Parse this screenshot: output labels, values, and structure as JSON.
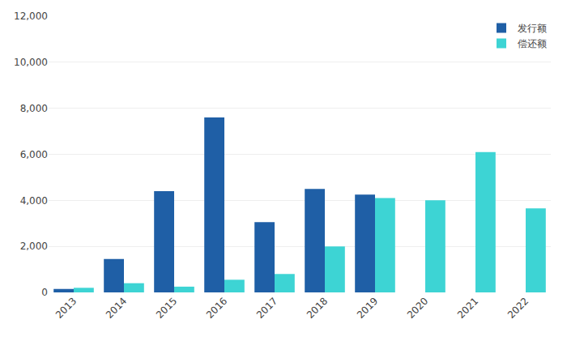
{
  "chart_data": {
    "type": "bar",
    "categories": [
      "2013",
      "2014",
      "2015",
      "2016",
      "2017",
      "2018",
      "2019",
      "2020",
      "2021",
      "2022"
    ],
    "series": [
      {
        "name": "发行额",
        "color": "#1f5fa6",
        "values": [
          150,
          1450,
          4400,
          7600,
          3050,
          4500,
          4250,
          0,
          0,
          0
        ]
      },
      {
        "name": "偿还额",
        "color": "#3dd4d4",
        "values": [
          200,
          400,
          250,
          550,
          800,
          2000,
          4100,
          4000,
          6100,
          3650
        ]
      }
    ],
    "ylim": [
      0,
      12000
    ],
    "yticks": [
      0,
      {
        "value": 2000,
        "label": "2,000"
      },
      {
        "value": 4000,
        "label": "4,000"
      },
      {
        "value": 6000,
        "label": "6,000"
      },
      {
        "value": 8000,
        "label": "8,000"
      },
      {
        "value": 10000,
        "label": "10,000"
      },
      {
        "value": 12000,
        "label": "12,000"
      }
    ],
    "grid": true,
    "legend": "upper right"
  }
}
